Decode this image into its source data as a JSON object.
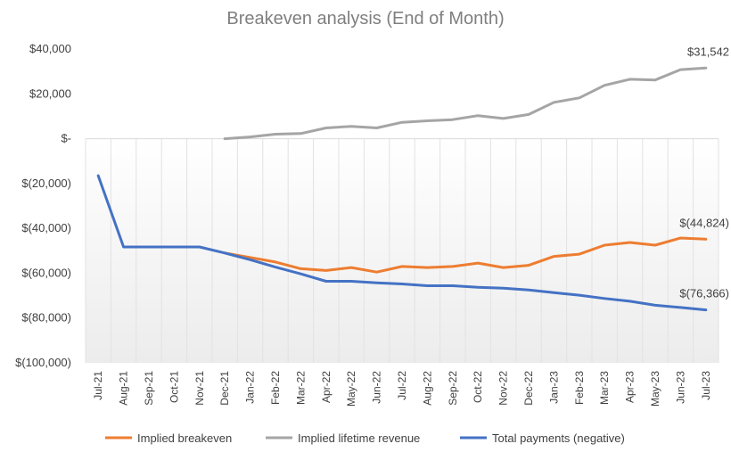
{
  "chart_data": {
    "type": "line",
    "title": "Breakeven analysis (End of Month)",
    "xlabel": "",
    "ylabel": "",
    "ylim": [
      -100000,
      40000
    ],
    "y_ticks": [
      40000,
      20000,
      0,
      -20000,
      -40000,
      -60000,
      -80000,
      -100000
    ],
    "y_tick_labels": [
      "$40,000",
      "$20,000",
      "$-",
      "$(20,000)",
      "$(40,000)",
      "$(60,000)",
      "$(80,000)",
      "$(100,000)"
    ],
    "categories": [
      "Jul-21",
      "Aug-21",
      "Sep-21",
      "Oct-21",
      "Nov-21",
      "Dec-21",
      "Jan-22",
      "Feb-22",
      "Mar-22",
      "Apr-22",
      "May-22",
      "Jun-22",
      "Jul-22",
      "Aug-22",
      "Sep-22",
      "Oct-22",
      "Nov-22",
      "Dec-22",
      "Jan-23",
      "Feb-23",
      "Mar-23",
      "Apr-23",
      "May-23",
      "Jun-23",
      "Jul-23"
    ],
    "grid": true,
    "legend_position": "bottom",
    "series": [
      {
        "name": "Implied breakeven",
        "color": "#ed7d31",
        "values": [
          null,
          null,
          null,
          null,
          null,
          -51000,
          -53000,
          -55000,
          -58000,
          -58800,
          -57500,
          -59500,
          -57000,
          -57500,
          -57000,
          -55500,
          -57500,
          -56500,
          -52500,
          -51500,
          -47500,
          -46300,
          -47500,
          -44300,
          -44824
        ]
      },
      {
        "name": "Implied lifetime revenue",
        "color": "#a5a5a5",
        "values": [
          null,
          null,
          null,
          null,
          null,
          0,
          800,
          2000,
          2300,
          4800,
          5500,
          4800,
          7300,
          8000,
          8500,
          10300,
          9000,
          10800,
          16200,
          18200,
          23800,
          26500,
          26200,
          30800,
          31542
        ]
      },
      {
        "name": "Total payments (negative)",
        "color": "#4472c4",
        "values": [
          -16500,
          -48300,
          -48300,
          -48300,
          -48300,
          -51000,
          -54000,
          -57300,
          -60300,
          -63600,
          -63600,
          -64300,
          -64800,
          -65600,
          -65600,
          -66300,
          -66700,
          -67500,
          -68700,
          -69800,
          -71300,
          -72500,
          -74300,
          -75300,
          -76366
        ]
      }
    ],
    "annotations": [
      {
        "text": "$31,542",
        "series": "Implied lifetime revenue",
        "category": "Jul-23"
      },
      {
        "text": "$(44,824)",
        "series": "Implied breakeven",
        "category": "Jul-23"
      },
      {
        "text": "$(76,366)",
        "series": "Total payments (negative)",
        "category": "Jul-23"
      }
    ]
  }
}
